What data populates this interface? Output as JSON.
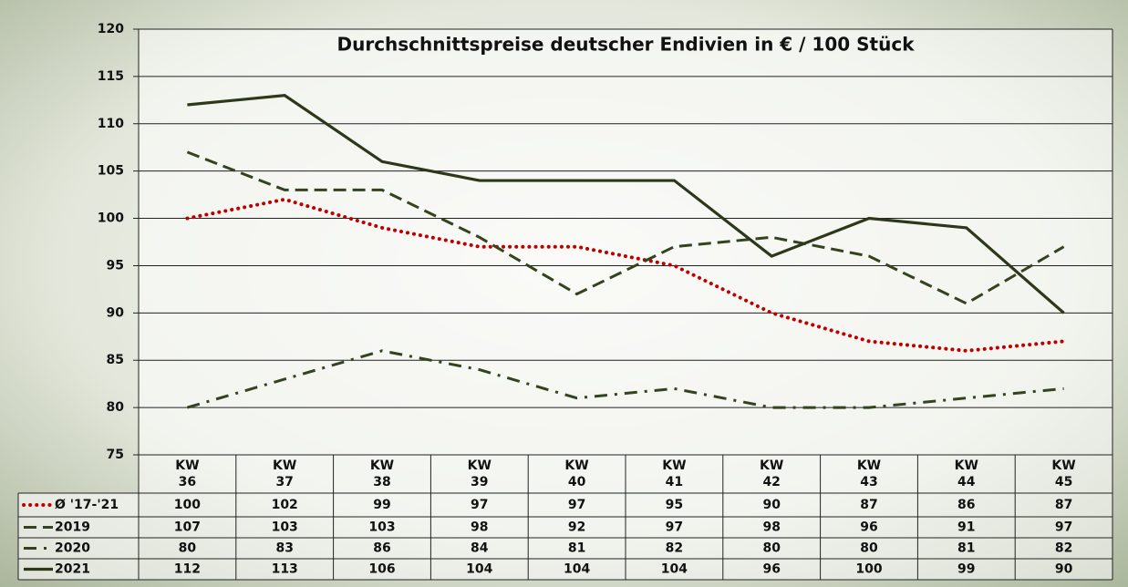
{
  "chart_data": {
    "type": "line",
    "title": "Durchschnittspreise deutscher Endivien in € / 100 Stück",
    "categories": [
      "KW 36",
      "KW 37",
      "KW 38",
      "KW 39",
      "KW 40",
      "KW 41",
      "KW 42",
      "KW 43",
      "KW 44",
      "KW 45"
    ],
    "series": [
      {
        "name": "Ø '17-'21",
        "color": "#c00000",
        "linestyle": "dotted",
        "values": [
          100,
          102,
          99,
          97,
          97,
          95,
          90,
          87,
          86,
          87
        ]
      },
      {
        "name": "2019",
        "color": "#34431f",
        "linestyle": "dashed",
        "values": [
          107,
          103,
          103,
          98,
          92,
          97,
          98,
          96,
          91,
          97
        ]
      },
      {
        "name": "2020",
        "color": "#34431f",
        "linestyle": "dashdot",
        "values": [
          80,
          83,
          86,
          84,
          81,
          82,
          80,
          80,
          81,
          82
        ]
      },
      {
        "name": "2021",
        "color": "#2c3819",
        "linestyle": "solid",
        "values": [
          112,
          113,
          106,
          104,
          104,
          104,
          96,
          100,
          99,
          90
        ]
      }
    ],
    "ylim": [
      75,
      120
    ],
    "yticks": [
      75,
      80,
      85,
      90,
      95,
      100,
      105,
      110,
      115,
      120
    ],
    "grid": true
  }
}
